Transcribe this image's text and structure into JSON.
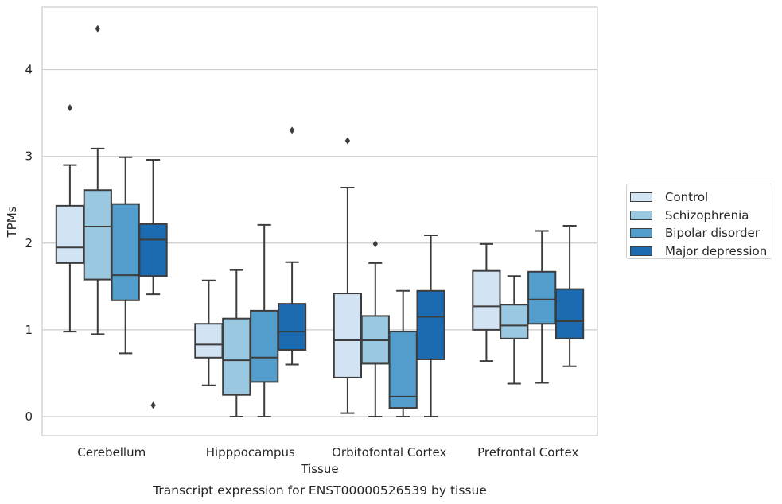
{
  "chart_data": {
    "type": "box",
    "title": "Transcript expression for ENST00000526539 by tissue",
    "xlabel": "Tissue",
    "ylabel": "TPMs",
    "ylim": [
      -0.22,
      4.72
    ],
    "yticks": [
      "0",
      "1",
      "2",
      "3",
      "4"
    ],
    "grid": "horizontal",
    "legend_position": "right",
    "categories": [
      "Cerebellum",
      "Hipppocampus",
      "Orbitofontal Cortex",
      "Prefrontal Cortex"
    ],
    "series": [
      {
        "name": "Control",
        "color": "#d2e3f3",
        "boxes": [
          {
            "whisker_low": 0.98,
            "q1": 1.77,
            "median": 1.95,
            "q3": 2.43,
            "whisker_high": 2.9,
            "outliers": [
              3.56
            ]
          },
          {
            "whisker_low": 0.36,
            "q1": 0.68,
            "median": 0.83,
            "q3": 1.07,
            "whisker_high": 1.57,
            "outliers": []
          },
          {
            "whisker_low": 0.04,
            "q1": 0.45,
            "median": 0.88,
            "q3": 1.42,
            "whisker_high": 2.64,
            "outliers": [
              3.18
            ]
          },
          {
            "whisker_low": 0.64,
            "q1": 1.0,
            "median": 1.27,
            "q3": 1.68,
            "whisker_high": 1.99,
            "outliers": []
          }
        ]
      },
      {
        "name": "Schizophrenia",
        "color": "#9ac8e0",
        "boxes": [
          {
            "whisker_low": 0.95,
            "q1": 1.58,
            "median": 2.19,
            "q3": 2.61,
            "whisker_high": 3.09,
            "outliers": [
              4.47
            ]
          },
          {
            "whisker_low": 0.0,
            "q1": 0.25,
            "median": 0.65,
            "q3": 1.13,
            "whisker_high": 1.69,
            "outliers": []
          },
          {
            "whisker_low": 0.0,
            "q1": 0.61,
            "median": 0.88,
            "q3": 1.16,
            "whisker_high": 1.77,
            "outliers": [
              1.99
            ]
          },
          {
            "whisker_low": 0.38,
            "q1": 0.9,
            "median": 1.05,
            "q3": 1.29,
            "whisker_high": 1.62,
            "outliers": []
          }
        ]
      },
      {
        "name": "Bipolar disorder",
        "color": "#529dcc",
        "boxes": [
          {
            "whisker_low": 0.73,
            "q1": 1.34,
            "median": 1.63,
            "q3": 2.45,
            "whisker_high": 2.99,
            "outliers": []
          },
          {
            "whisker_low": 0.0,
            "q1": 0.4,
            "median": 0.68,
            "q3": 1.22,
            "whisker_high": 2.21,
            "outliers": []
          },
          {
            "whisker_low": 0.0,
            "q1": 0.1,
            "median": 0.23,
            "q3": 0.98,
            "whisker_high": 1.45,
            "outliers": []
          },
          {
            "whisker_low": 0.39,
            "q1": 1.07,
            "median": 1.35,
            "q3": 1.67,
            "whisker_high": 2.14,
            "outliers": []
          }
        ]
      },
      {
        "name": "Major depression",
        "color": "#1c6aaf",
        "boxes": [
          {
            "whisker_low": 1.41,
            "q1": 1.62,
            "median": 2.04,
            "q3": 2.22,
            "whisker_high": 2.96,
            "outliers": [
              0.13
            ]
          },
          {
            "whisker_low": 0.6,
            "q1": 0.77,
            "median": 0.98,
            "q3": 1.3,
            "whisker_high": 1.78,
            "outliers": [
              3.3
            ]
          },
          {
            "whisker_low": 0.0,
            "q1": 0.66,
            "median": 1.15,
            "q3": 1.45,
            "whisker_high": 2.09,
            "outliers": []
          },
          {
            "whisker_low": 0.58,
            "q1": 0.9,
            "median": 1.1,
            "q3": 1.47,
            "whisker_high": 2.2,
            "outliers": []
          }
        ]
      }
    ]
  }
}
